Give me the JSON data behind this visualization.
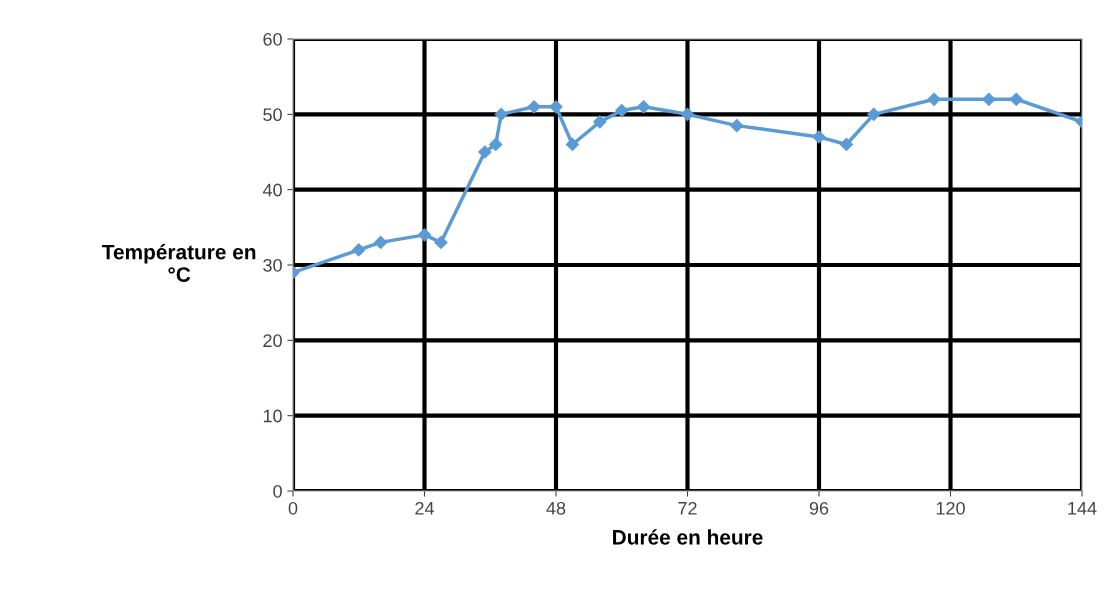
{
  "chart_data": {
    "type": "line",
    "xlabel": "Durée en heure",
    "ylabel": "Température en\n°C",
    "x": [
      0,
      12,
      16,
      24,
      27,
      35,
      37,
      38,
      44,
      48,
      51,
      56,
      60,
      64,
      72,
      81,
      96,
      101,
      106,
      117,
      127,
      132,
      144
    ],
    "series": [
      {
        "color": "#5b9bd5",
        "values": [
          29,
          32,
          33,
          34,
          33,
          45,
          46,
          50,
          51,
          51,
          46,
          49,
          50.5,
          51,
          50,
          48.5,
          47,
          46,
          50,
          52,
          52,
          52,
          49
        ]
      }
    ],
    "xlim": [
      0,
      144
    ],
    "xticks": [
      0,
      24,
      48,
      72,
      96,
      120,
      144
    ],
    "ylim": [
      0,
      60
    ],
    "yticks": [
      0,
      10,
      20,
      30,
      40,
      50,
      60
    ],
    "grid": true,
    "marker": "diamond",
    "line_style": "solid"
  }
}
